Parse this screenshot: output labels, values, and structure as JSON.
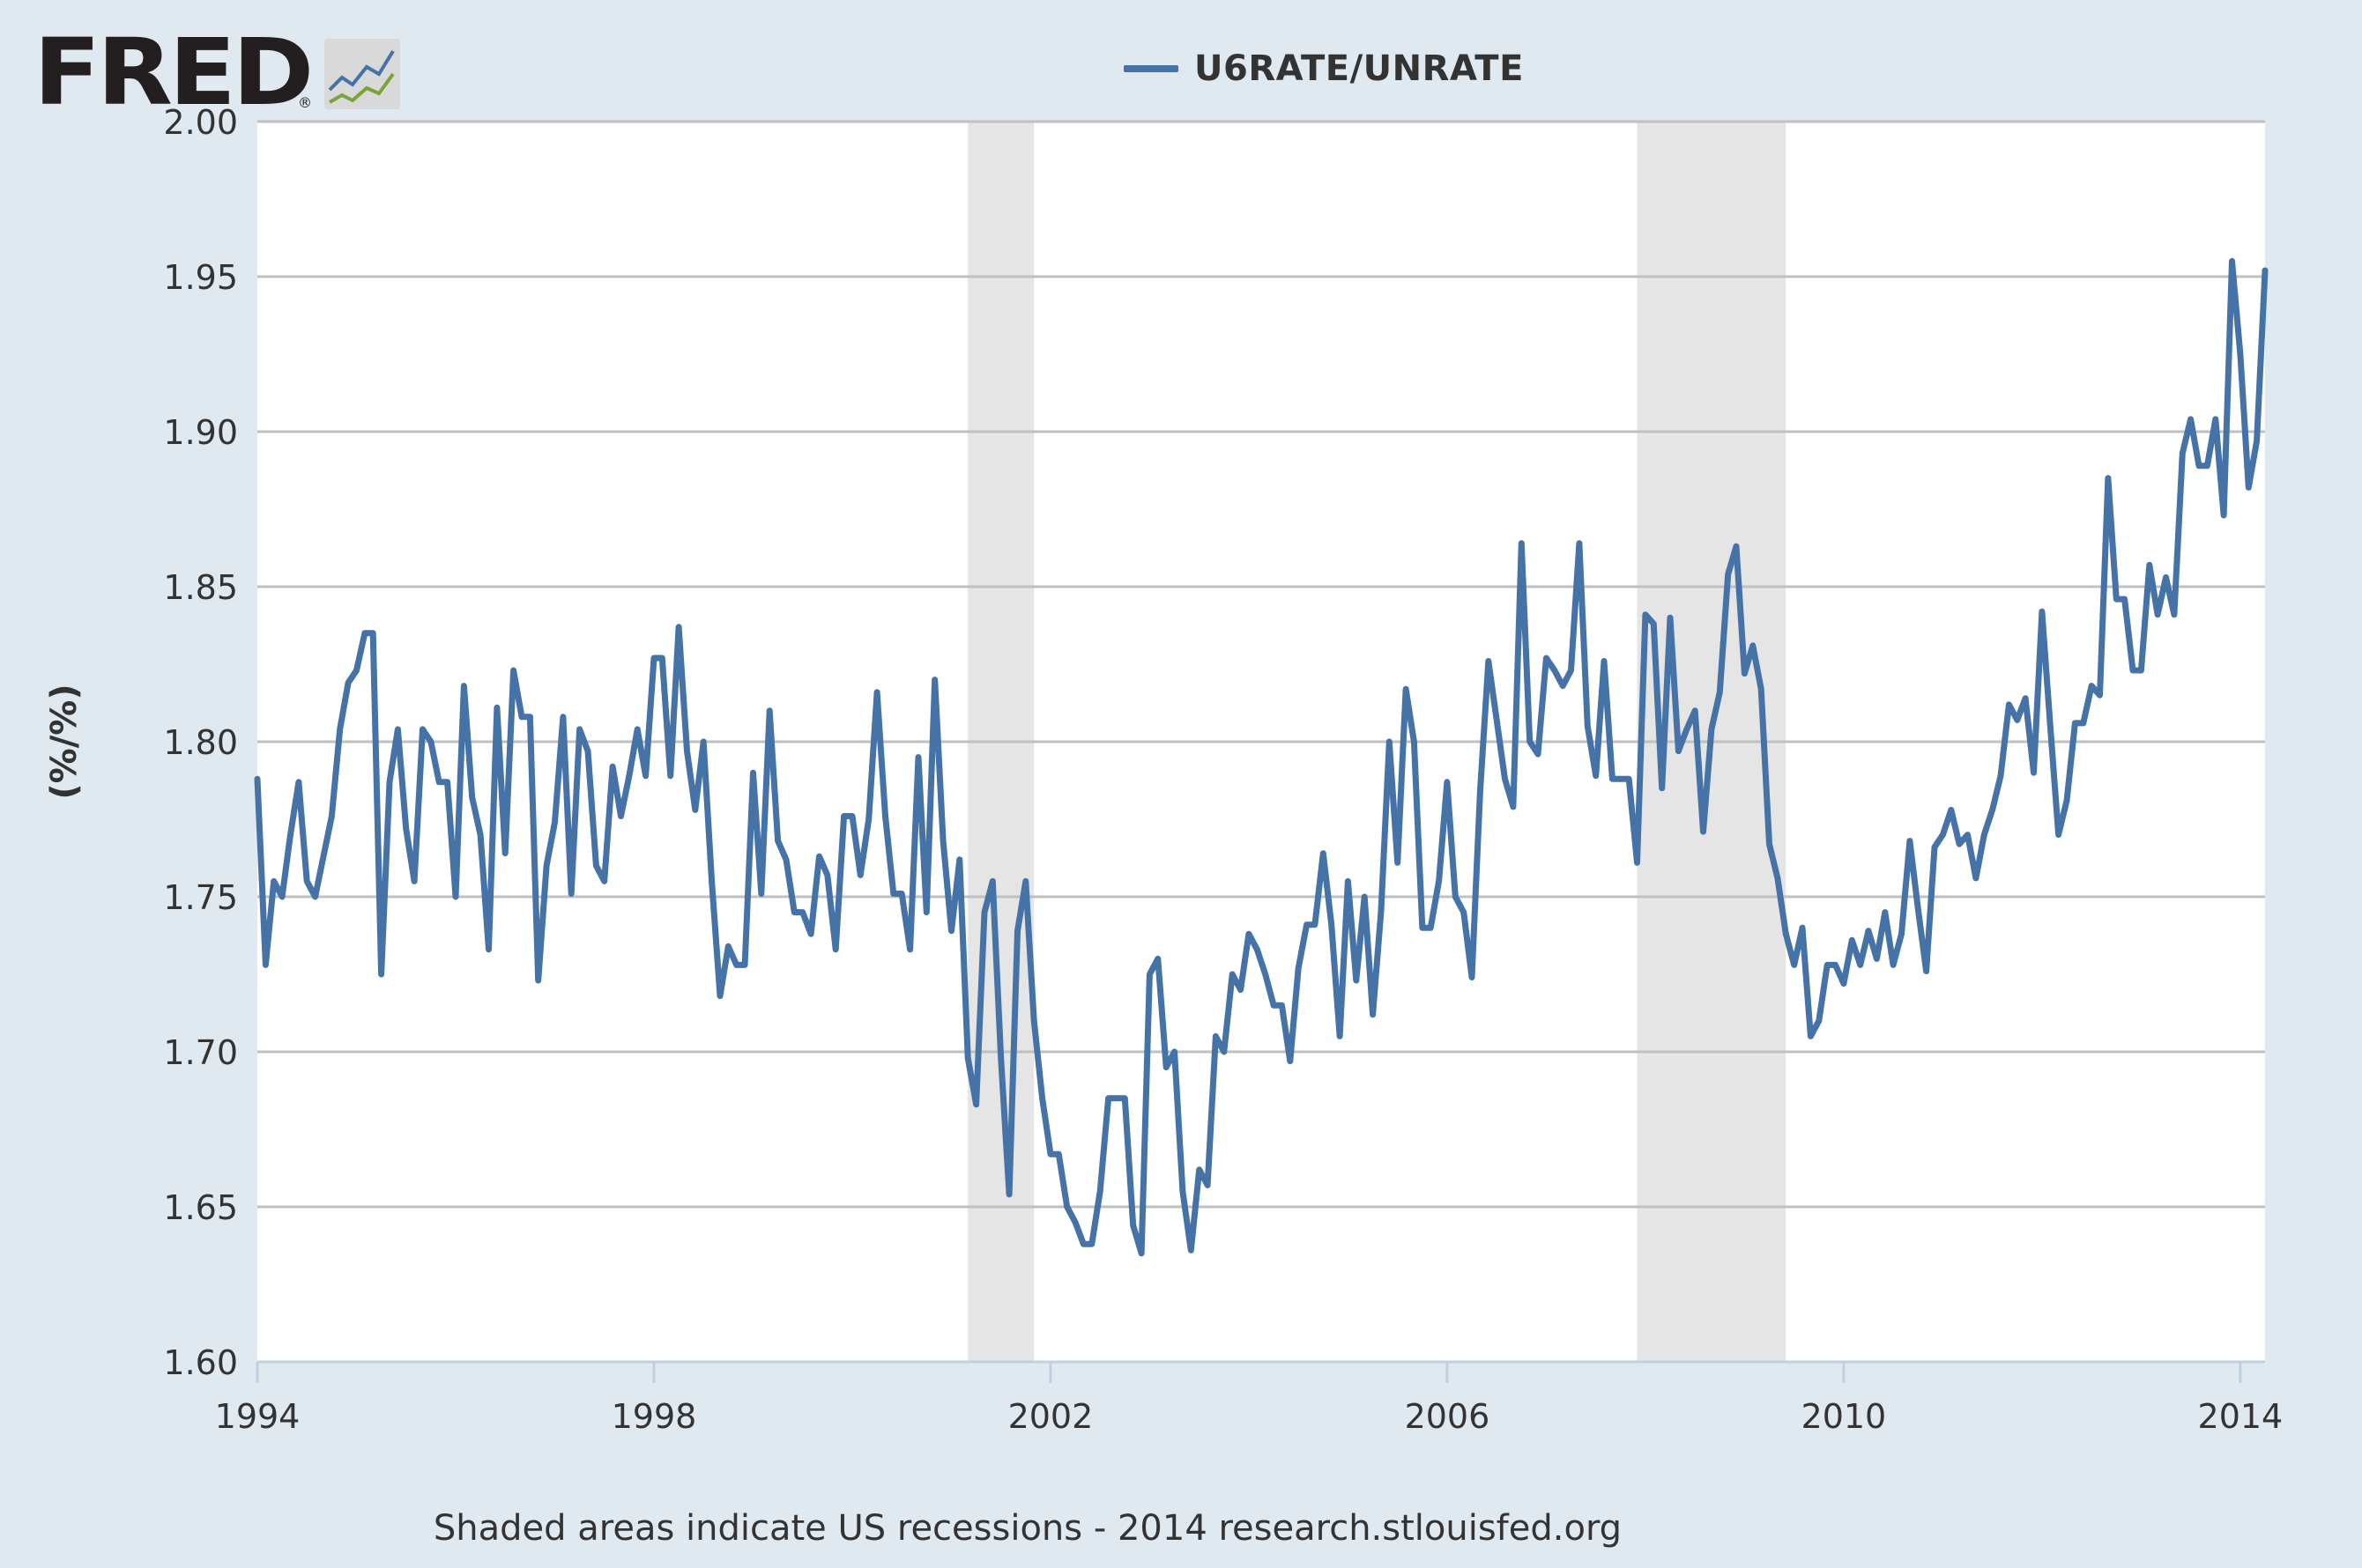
{
  "logo": {
    "text": "FRED",
    "registered": "®"
  },
  "colors": {
    "background": "#e1e9f0",
    "plot_bg": "#ffffff",
    "series": "#4572a7",
    "grid": "#c0c0c0",
    "recession": "#e5e5e5",
    "text": "#333333"
  },
  "footer": {
    "note": "Shaded areas indicate US recessions - 2014 research.stlouisfed.org"
  },
  "chart_data": {
    "type": "line",
    "title": "",
    "legend": {
      "position": "top-center",
      "entries": [
        "U6RATE/UNRATE"
      ]
    },
    "xlabel": "",
    "ylabel": "(%/%)",
    "xlim": [
      1994.0,
      2014.25
    ],
    "ylim": [
      1.6,
      2.0
    ],
    "grid": true,
    "x_ticks": [
      "1994",
      "1998",
      "2002",
      "2006",
      "2010",
      "2014"
    ],
    "y_ticks": [
      "1.60",
      "1.65",
      "1.70",
      "1.75",
      "1.80",
      "1.85",
      "1.90",
      "1.95",
      "2.00"
    ],
    "recessions": [
      {
        "start": "2001-03",
        "end": "2001-11"
      },
      {
        "start": "2007-12",
        "end": "2009-06"
      }
    ],
    "series": [
      {
        "name": "U6RATE/UNRATE",
        "start": "1994-01",
        "frequency": "monthly",
        "values": [
          1.788,
          1.728,
          1.755,
          1.75,
          1.77,
          1.787,
          1.755,
          1.75,
          1.763,
          1.776,
          1.804,
          1.819,
          1.823,
          1.835,
          1.835,
          1.725,
          1.787,
          1.804,
          1.772,
          1.755,
          1.804,
          1.8,
          1.787,
          1.787,
          1.75,
          1.818,
          1.782,
          1.77,
          1.733,
          1.811,
          1.764,
          1.823,
          1.808,
          1.808,
          1.723,
          1.76,
          1.774,
          1.808,
          1.751,
          1.804,
          1.797,
          1.76,
          1.755,
          1.792,
          1.776,
          1.789,
          1.804,
          1.789,
          1.827,
          1.827,
          1.789,
          1.837,
          1.797,
          1.778,
          1.8,
          1.755,
          1.718,
          1.734,
          1.728,
          1.728,
          1.79,
          1.751,
          1.81,
          1.768,
          1.762,
          1.745,
          1.745,
          1.738,
          1.763,
          1.757,
          1.733,
          1.776,
          1.776,
          1.757,
          1.775,
          1.816,
          1.776,
          1.751,
          1.751,
          1.733,
          1.795,
          1.745,
          1.82,
          1.768,
          1.739,
          1.762,
          1.698,
          1.683,
          1.745,
          1.755,
          1.698,
          1.654,
          1.739,
          1.755,
          1.71,
          1.685,
          1.667,
          1.667,
          1.65,
          1.645,
          1.638,
          1.638,
          1.655,
          1.685,
          1.685,
          1.685,
          1.644,
          1.635,
          1.725,
          1.73,
          1.695,
          1.7,
          1.655,
          1.636,
          1.662,
          1.657,
          1.705,
          1.7,
          1.725,
          1.72,
          1.738,
          1.733,
          1.725,
          1.715,
          1.715,
          1.697,
          1.727,
          1.741,
          1.741,
          1.764,
          1.741,
          1.705,
          1.755,
          1.723,
          1.75,
          1.712,
          1.745,
          1.8,
          1.761,
          1.817,
          1.8,
          1.74,
          1.74,
          1.755,
          1.787,
          1.75,
          1.745,
          1.724,
          1.784,
          1.826,
          1.807,
          1.788,
          1.779,
          1.864,
          1.8,
          1.796,
          1.827,
          1.823,
          1.818,
          1.823,
          1.864,
          1.805,
          1.789,
          1.826,
          1.788,
          1.788,
          1.788,
          1.761,
          1.841,
          1.838,
          1.785,
          1.84,
          1.797,
          1.804,
          1.81,
          1.771,
          1.804,
          1.816,
          1.854,
          1.863,
          1.822,
          1.831,
          1.817,
          1.767,
          1.756,
          1.738,
          1.728,
          1.74,
          1.705,
          1.71,
          1.728,
          1.728,
          1.722,
          1.736,
          1.728,
          1.739,
          1.73,
          1.745,
          1.728,
          1.738,
          1.768,
          1.746,
          1.726,
          1.766,
          1.77,
          1.778,
          1.767,
          1.77,
          1.756,
          1.77,
          1.778,
          1.789,
          1.812,
          1.807,
          1.814,
          1.79,
          1.842,
          1.805,
          1.77,
          1.781,
          1.806,
          1.806,
          1.818,
          1.815,
          1.885,
          1.846,
          1.846,
          1.823,
          1.823,
          1.857,
          1.841,
          1.853,
          1.841,
          1.893,
          1.904,
          1.889,
          1.889,
          1.904,
          1.873,
          1.955,
          1.925,
          1.882,
          1.897,
          1.952
        ]
      }
    ]
  }
}
